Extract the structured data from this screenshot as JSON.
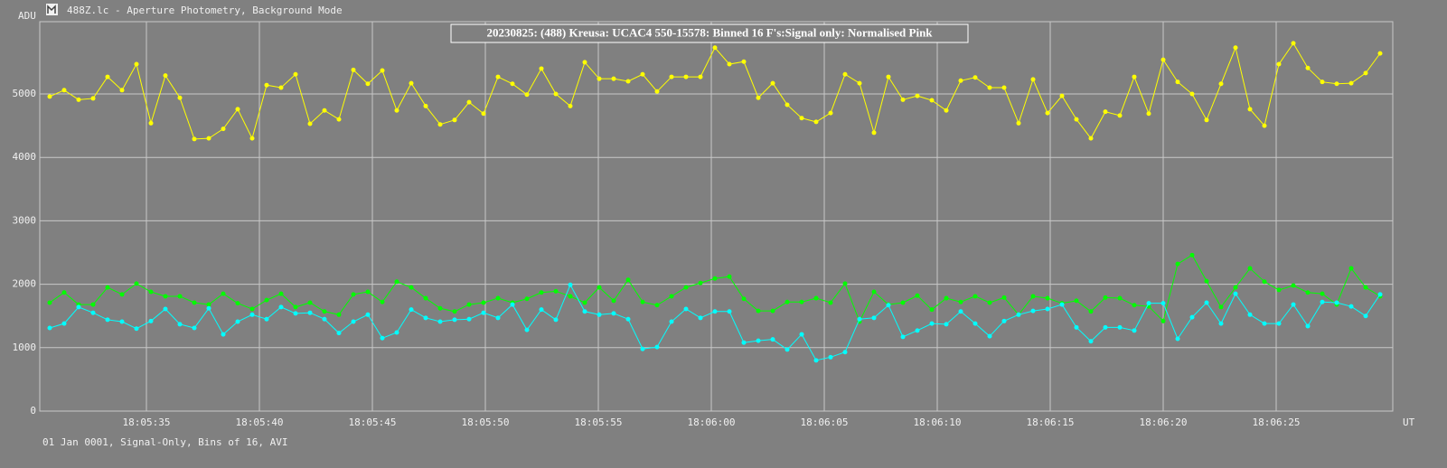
{
  "chart_data": {
    "type": "line",
    "window_title": "488Z.lc - Aperture Photometry, Background Mode",
    "title": "20230825: (488) Kreusa: UCAC4 550-15578: Binned 16 F's:Signal only: Normalised Pink",
    "y_label": "ADU",
    "x_label": "UT",
    "footer": "01 Jan 0001, Signal-Only, Bins of 16, AVI",
    "grid": true,
    "x": [
      65130.72,
      65131.36,
      65132.0,
      65132.64,
      65133.28,
      65133.92,
      65134.56,
      65135.2,
      65135.84,
      65136.48,
      65137.12,
      65137.76,
      65138.4,
      65139.04,
      65139.68,
      65140.32,
      65140.96,
      65141.6,
      65142.24,
      65142.88,
      65143.52,
      65144.16,
      65144.8,
      65145.44,
      65146.08,
      65146.72,
      65147.36,
      65148.0,
      65148.64,
      65149.28,
      65149.92,
      65150.56,
      65151.2,
      65151.84,
      65152.48,
      65153.12,
      65153.76,
      65154.4,
      65155.04,
      65155.68,
      65156.32,
      65156.96,
      65157.6,
      65158.24,
      65158.88,
      65159.52,
      65160.16,
      65160.8,
      65161.44,
      65162.08,
      65162.72,
      65163.36,
      65164.0,
      65164.64,
      65165.28,
      65165.92,
      65166.56,
      65167.2,
      65167.84,
      65168.48,
      65169.12,
      65169.76,
      65170.4,
      65171.04,
      65171.68,
      65172.32,
      65172.96,
      65173.6,
      65174.24,
      65174.88,
      65175.52,
      65176.16,
      65176.8,
      65177.44,
      65178.08,
      65178.72,
      65179.36,
      65180.0,
      65180.64,
      65181.28,
      65181.92,
      65182.56,
      65183.2,
      65183.84,
      65184.48,
      65185.12,
      65185.76,
      65186.4,
      65187.04,
      65187.68,
      65188.32,
      65188.96,
      65189.6
    ],
    "series": [
      {
        "color": "#ffff00",
        "values": [
          4960,
          5060,
          4910,
          4930,
          5270,
          5060,
          5470,
          4540,
          5290,
          4940,
          4290,
          4300,
          4450,
          4760,
          4300,
          5140,
          5100,
          5310,
          4530,
          4740,
          4600,
          5380,
          5160,
          5370,
          4740,
          5170,
          4810,
          4520,
          4590,
          4870,
          4690,
          5270,
          5160,
          4990,
          5400,
          5000,
          4810,
          5500,
          5240,
          5240,
          5200,
          5310,
          5040,
          5270,
          5270,
          5270,
          5730,
          5470,
          5510,
          4940,
          5170,
          4830,
          4620,
          4560,
          4700,
          5310,
          5170,
          4390,
          5270,
          4910,
          4970,
          4900,
          4740,
          5210,
          5260,
          5100,
          5100,
          4540,
          5230,
          4700,
          4970,
          4600,
          4300,
          4720,
          4660,
          5270,
          4690,
          5540,
          5190,
          5000,
          4590,
          5160,
          5730,
          4760,
          4500,
          5470,
          5800,
          5410,
          5190,
          5160,
          5170,
          5330,
          5640
        ]
      },
      {
        "color": "#00ff00",
        "values": [
          1710,
          1870,
          1680,
          1680,
          1950,
          1840,
          2010,
          1880,
          1810,
          1810,
          1710,
          1680,
          1850,
          1700,
          1610,
          1750,
          1850,
          1640,
          1710,
          1570,
          1520,
          1840,
          1880,
          1720,
          2040,
          1950,
          1780,
          1620,
          1570,
          1680,
          1710,
          1780,
          1710,
          1770,
          1870,
          1890,
          1810,
          1710,
          1950,
          1740,
          2070,
          1720,
          1670,
          1810,
          1950,
          2020,
          2090,
          2120,
          1770,
          1580,
          1580,
          1720,
          1720,
          1780,
          1710,
          2010,
          1410,
          1880,
          1680,
          1710,
          1820,
          1600,
          1780,
          1720,
          1810,
          1710,
          1790,
          1520,
          1810,
          1780,
          1700,
          1740,
          1570,
          1790,
          1780,
          1670,
          1650,
          1420,
          2320,
          2460,
          2050,
          1640,
          1950,
          2250,
          2040,
          1910,
          1980,
          1870,
          1850,
          1680,
          2250,
          1950,
          1810
        ]
      },
      {
        "color": "#00ffff",
        "values": [
          1310,
          1380,
          1640,
          1550,
          1440,
          1410,
          1300,
          1420,
          1610,
          1370,
          1310,
          1620,
          1210,
          1410,
          1520,
          1450,
          1640,
          1540,
          1550,
          1450,
          1230,
          1410,
          1520,
          1150,
          1240,
          1600,
          1470,
          1410,
          1440,
          1450,
          1550,
          1470,
          1680,
          1280,
          1600,
          1440,
          1990,
          1570,
          1520,
          1540,
          1450,
          980,
          1010,
          1410,
          1610,
          1470,
          1570,
          1570,
          1080,
          1110,
          1130,
          970,
          1210,
          800,
          850,
          930,
          1450,
          1470,
          1670,
          1170,
          1270,
          1380,
          1370,
          1570,
          1380,
          1180,
          1420,
          1520,
          1580,
          1610,
          1680,
          1320,
          1100,
          1320,
          1320,
          1270,
          1700,
          1700,
          1140,
          1480,
          1710,
          1380,
          1850,
          1520,
          1380,
          1380,
          1680,
          1340,
          1720,
          1710,
          1650,
          1500,
          1840
        ]
      }
    ],
    "xlim": [
      65130.28,
      65190.16
    ],
    "ylim": [
      0,
      6140
    ],
    "yticks": [
      0,
      1000,
      2000,
      3000,
      4000,
      5000
    ],
    "xticks": [
      {
        "value": 65135,
        "label": "18:05:35"
      },
      {
        "value": 65140,
        "label": "18:05:40"
      },
      {
        "value": 65145,
        "label": "18:05:45"
      },
      {
        "value": 65150,
        "label": "18:05:50"
      },
      {
        "value": 65155,
        "label": "18:05:55"
      },
      {
        "value": 65160,
        "label": "18:06:00"
      },
      {
        "value": 65165,
        "label": "18:06:05"
      },
      {
        "value": 65170,
        "label": "18:06:10"
      },
      {
        "value": 65175,
        "label": "18:06:15"
      },
      {
        "value": 65180,
        "label": "18:06:20"
      },
      {
        "value": 65185,
        "label": "18:06:25"
      }
    ]
  }
}
